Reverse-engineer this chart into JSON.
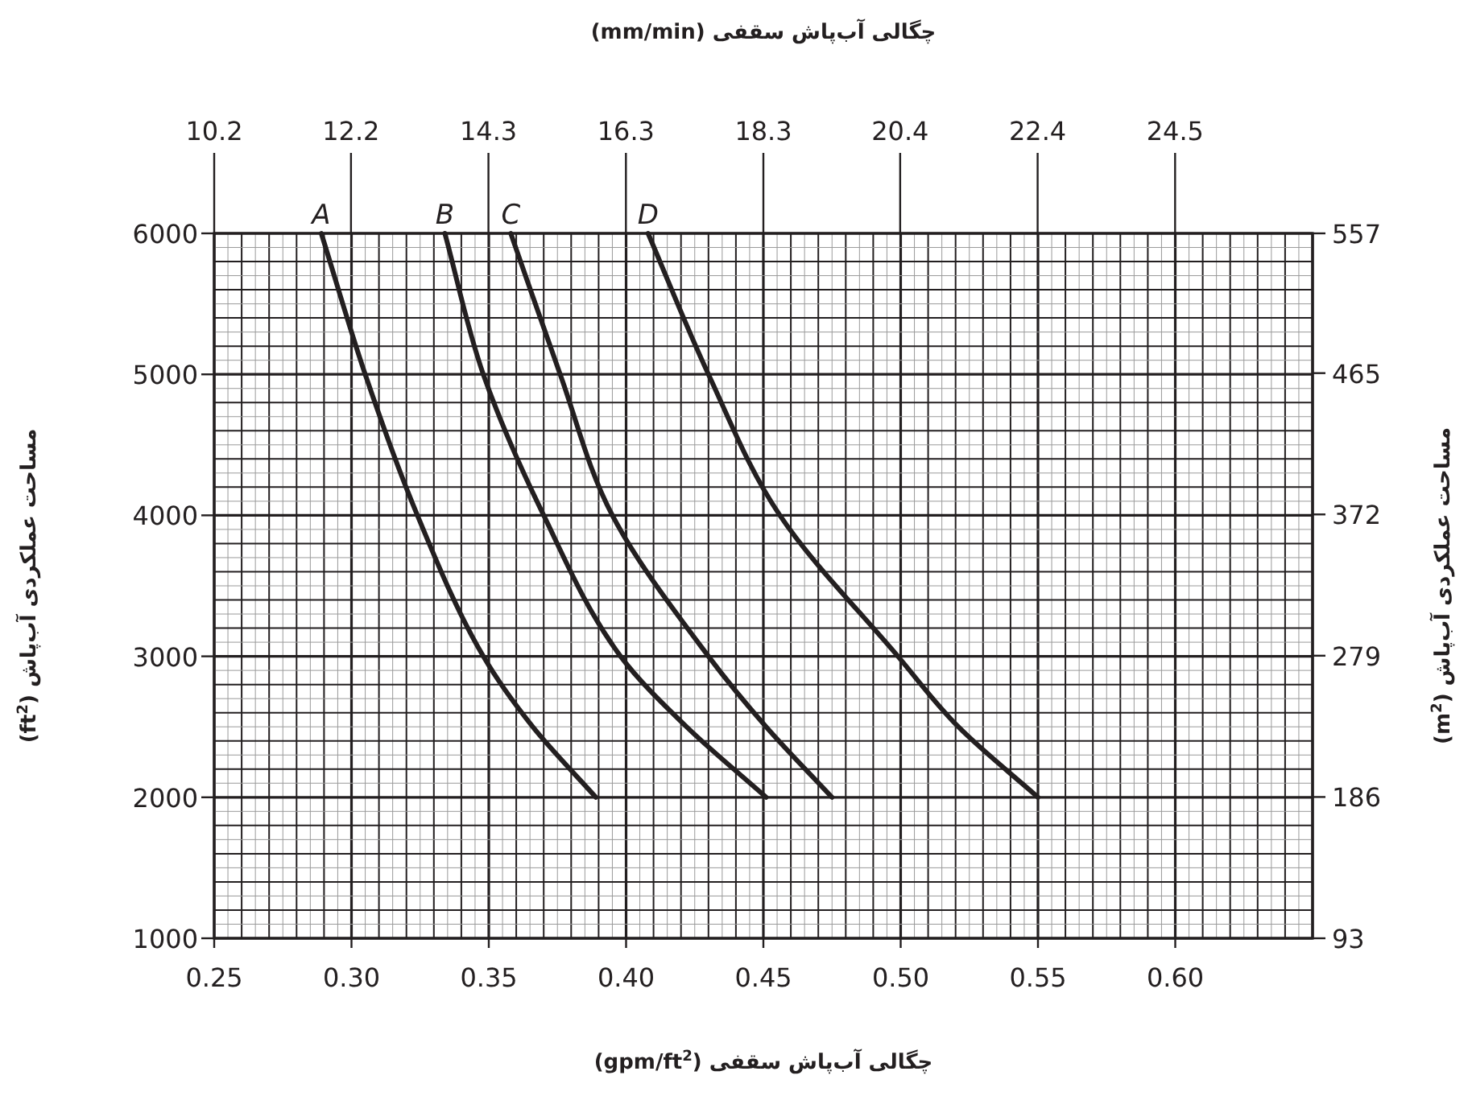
{
  "chart_data": {
    "type": "line",
    "x2label": "چگالی آب‌پاش سقفی (mm/min)",
    "xlabel": "چگالی آب‌پاش سقفی (gpm/ft$^{2}$)",
    "ylabel": "مساحت عملکردی آب‌پاش (ft$^{2}$)",
    "y2label": "مساحت عملکردی آب‌پاش (m$^{2}$)",
    "xlim": [
      0.25,
      0.65
    ],
    "xticks": [
      {
        "value": 0.25,
        "label": "0.25"
      },
      {
        "value": 0.3,
        "label": "0.30"
      },
      {
        "value": 0.35,
        "label": "0.35"
      },
      {
        "value": 0.4,
        "label": "0.40"
      },
      {
        "value": 0.45,
        "label": "0.45"
      },
      {
        "value": 0.5,
        "label": "0.50"
      },
      {
        "value": 0.55,
        "label": "0.55"
      },
      {
        "value": 0.6,
        "label": "0.60"
      }
    ],
    "x2lim": [
      10.19,
      26.49
    ],
    "x2ticks": [
      {
        "value": 10.19,
        "label": "10.2"
      },
      {
        "value": 12.22,
        "label": "12.2"
      },
      {
        "value": 14.26,
        "label": "14.3"
      },
      {
        "value": 16.3,
        "label": "16.3"
      },
      {
        "value": 18.34,
        "label": "18.3"
      },
      {
        "value": 20.37,
        "label": "20.4"
      },
      {
        "value": 22.41,
        "label": "22.4"
      },
      {
        "value": 24.45,
        "label": "24.5"
      }
    ],
    "ylim": [
      1000,
      6000
    ],
    "yticks": [
      1000,
      2000,
      3000,
      4000,
      5000,
      6000
    ],
    "y2lim": [
      93,
      557
    ],
    "y2ticks": [
      93,
      186,
      279,
      372,
      465,
      557
    ],
    "grid": true,
    "series": [
      {
        "name": "A",
        "color": "#231f20",
        "x": [
          0.289,
          0.305,
          0.324,
          0.348,
          0.366,
          0.389
        ],
        "values": [
          6000,
          5000,
          4000,
          3000,
          2500,
          2000
        ]
      },
      {
        "name": "B",
        "color": "#231f20",
        "x": [
          0.334,
          0.348,
          0.37,
          0.398,
          0.422,
          0.451
        ],
        "values": [
          6000,
          5000,
          4000,
          3000,
          2500,
          2000
        ]
      },
      {
        "name": "C",
        "color": "#231f20",
        "x": [
          0.358,
          0.376,
          0.395,
          0.43,
          0.451,
          0.475
        ],
        "values": [
          6000,
          5000,
          4000,
          3000,
          2500,
          2000
        ]
      },
      {
        "name": "D",
        "color": "#231f20",
        "x": [
          0.408,
          0.43,
          0.456,
          0.499,
          0.521,
          0.55
        ],
        "values": [
          6000,
          5000,
          4000,
          3000,
          2500,
          2000
        ]
      }
    ]
  }
}
